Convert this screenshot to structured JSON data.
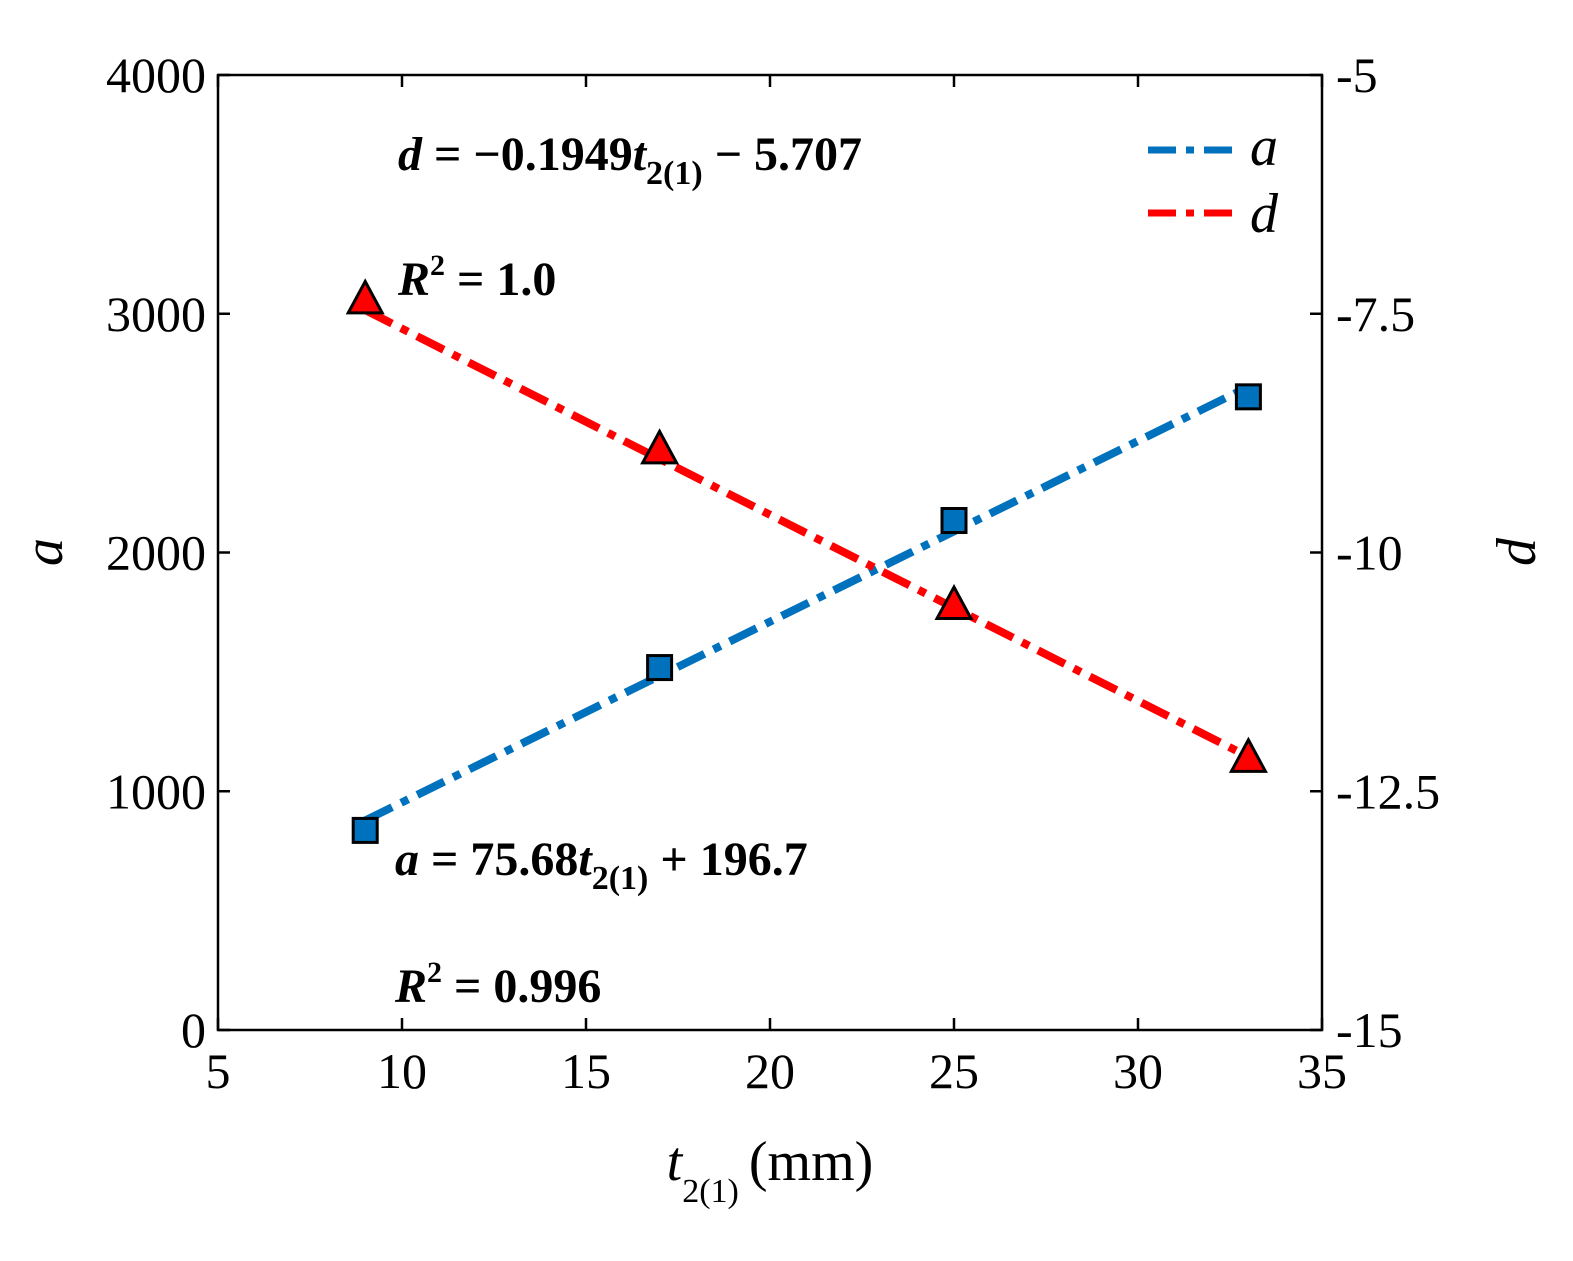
{
  "chart_data": {
    "type": "line",
    "x": [
      9,
      17,
      25,
      33
    ],
    "xlim": [
      5,
      35
    ],
    "xticks": [
      "5",
      "10",
      "15",
      "20",
      "25",
      "30",
      "35"
    ],
    "xlabel": {
      "var": "t",
      "sub": "2(1)",
      "unit": "(mm)"
    },
    "ylabel_left": "a",
    "ylabel_right": "d",
    "ylim_left": [
      0,
      4000
    ],
    "ylim_right": [
      -15,
      -5
    ],
    "yticks_left": [
      "0",
      "1000",
      "2000",
      "3000",
      "4000"
    ],
    "yticks_right": [
      "-15",
      "-12.5",
      "-10",
      "-7.5",
      "-5"
    ],
    "series": [
      {
        "name": "a",
        "axis": "left",
        "color": "#0072BD",
        "marker": "square",
        "values": [
          836,
          1518,
          2134,
          2652
        ],
        "fit": {
          "slope": 75.68,
          "intercept": 196.7
        }
      },
      {
        "name": "d",
        "axis": "right",
        "color": "#FF0000",
        "marker": "triangle",
        "values": [
          -7.35,
          -8.92,
          -10.55,
          -12.15
        ],
        "fit": {
          "slope": -0.1949,
          "intercept": -5.707
        }
      }
    ],
    "legend": {
      "position": "top-right",
      "items": [
        "a",
        "d"
      ]
    },
    "annotations": {
      "d_eq": {
        "lhs": "d",
        "op1": " = −0.1949",
        "var": "t",
        "sub": "2(1)",
        "tail": " − 5.707"
      },
      "d_r2": {
        "lhs": "R",
        "sup": "2",
        "tail": " = 1.0"
      },
      "a_eq": {
        "lhs": "a",
        "op1": " = 75.68",
        "var": "t",
        "sub": "2(1)",
        "tail": " + 196.7"
      },
      "a_r2": {
        "lhs": "R",
        "sup": "2",
        "tail": " = 0.996"
      }
    }
  }
}
